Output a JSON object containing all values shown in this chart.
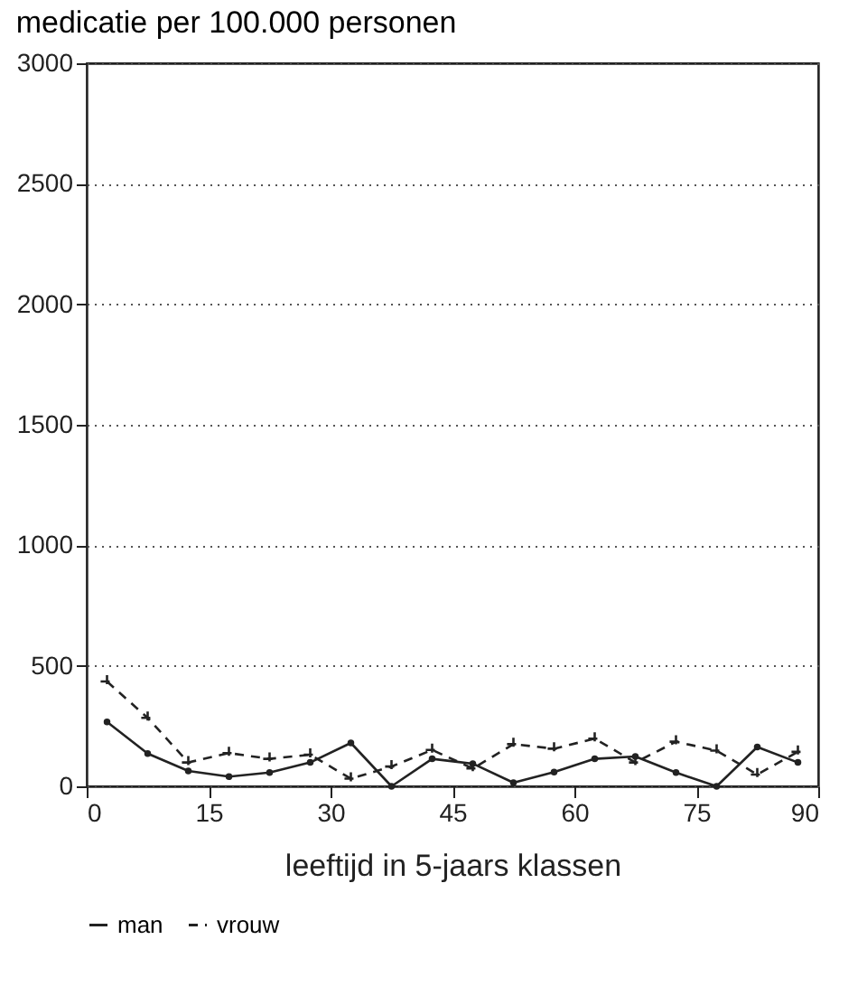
{
  "chart_data": {
    "type": "line",
    "title": "medicatie per 100.000 personen",
    "xlabel": "leeftijd in 5-jaars klassen",
    "x": [
      2.5,
      7.5,
      12.5,
      17.5,
      22.5,
      27.5,
      32.5,
      37.5,
      42.5,
      47.5,
      52.5,
      57.5,
      62.5,
      67.5,
      72.5,
      77.5,
      82.5,
      87.5
    ],
    "series": [
      {
        "name": "man",
        "color": "#222222",
        "marker": "circle",
        "line_style": "solid",
        "values": [
          267,
          136,
          64,
          40,
          57,
          99,
          180,
          0,
          114,
          94,
          15,
          59,
          114,
          124,
          57,
          0,
          163,
          99
        ]
      },
      {
        "name": "vrouw",
        "color": "#222222",
        "marker": "cross",
        "line_style": "dashed",
        "values": [
          435,
          284,
          99,
          138,
          114,
          131,
          32,
          82,
          151,
          74,
          175,
          156,
          198,
          99,
          185,
          148,
          49,
          143
        ]
      }
    ],
    "xlim": [
      0,
      90
    ],
    "xticks": [
      0,
      15,
      30,
      45,
      60,
      75,
      90
    ],
    "ylim": [
      0,
      3000
    ],
    "yticks": [
      0,
      500,
      1000,
      1500,
      2000,
      2500,
      3000
    ],
    "grid": "y",
    "legend": "bottom"
  }
}
